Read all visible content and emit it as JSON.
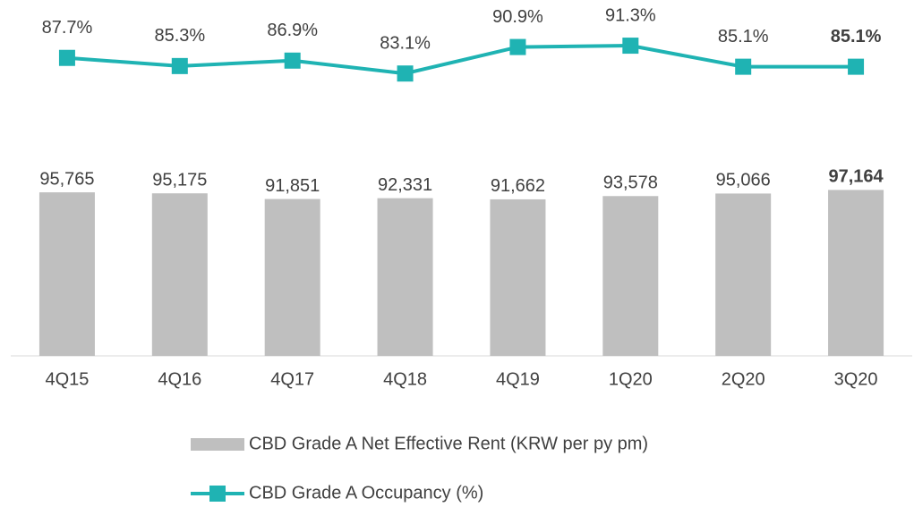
{
  "chart_data": {
    "type": "bar",
    "categories": [
      "4Q15",
      "4Q16",
      "4Q17",
      "4Q18",
      "4Q19",
      "1Q20",
      "2Q20",
      "3Q20"
    ],
    "series": [
      {
        "name": "CBD Grade A Net Effective Rent (KRW per py pm)",
        "type": "bar",
        "color": "#bfbfbf",
        "values": [
          95765,
          95175,
          91851,
          92331,
          91662,
          93578,
          95066,
          97164
        ],
        "value_labels": [
          "95,765",
          "95,175",
          "91,851",
          "92,331",
          "91,662",
          "93,578",
          "95,066",
          "97,164"
        ]
      },
      {
        "name": "CBD Grade A Occupancy (%)",
        "type": "line",
        "axis": "y2",
        "color": "#1fb3b3",
        "values": [
          87.7,
          85.3,
          86.9,
          83.1,
          90.9,
          91.3,
          85.1,
          85.1
        ],
        "value_labels": [
          "87.7%",
          "85.3%",
          "86.9%",
          "83.1%",
          "90.9%",
          "91.3%",
          "85.1%",
          "85.1%"
        ]
      }
    ],
    "ylim": [
      0,
      100000
    ],
    "y2lim": [
      80,
      100
    ],
    "legend": "bottom"
  }
}
